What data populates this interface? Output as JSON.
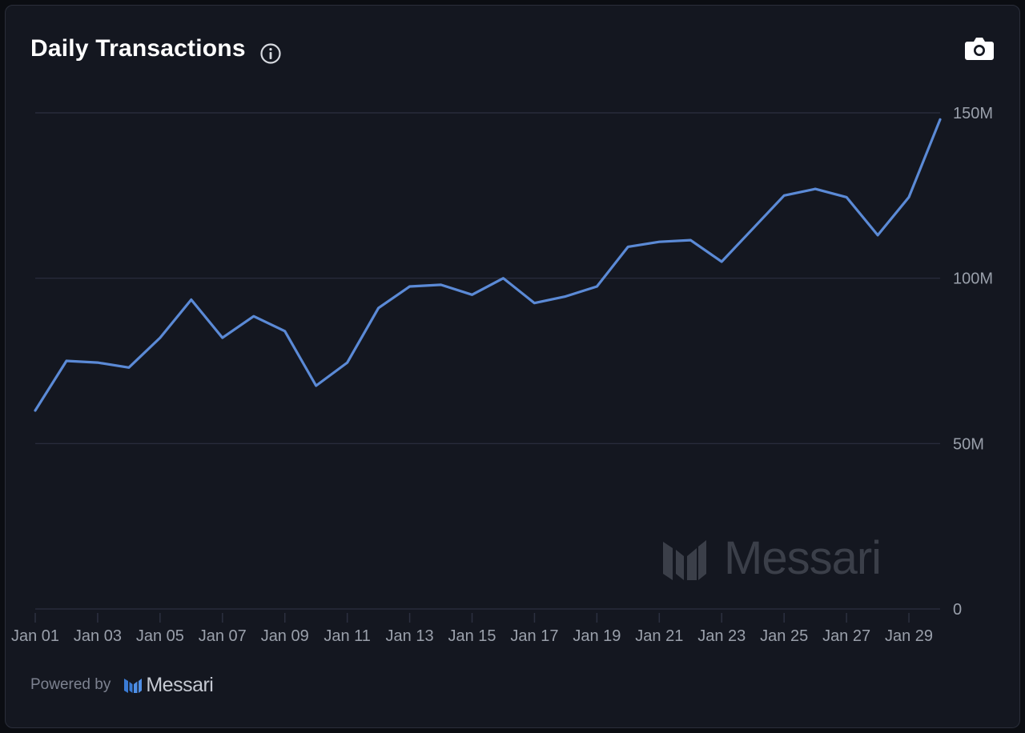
{
  "header": {
    "title": "Daily Transactions",
    "info_icon": "info-circle-icon",
    "camera_icon": "camera-icon"
  },
  "footer": {
    "powered_by": "Powered by",
    "brand": "Messari"
  },
  "watermark": {
    "text": "Messari"
  },
  "colors": {
    "background": "#141720",
    "line": "#5b8ad6",
    "grid": "#2c3040",
    "tick_text": "#9aa0ab"
  },
  "chart_data": {
    "type": "line",
    "title": "Daily Transactions",
    "xlabel": "",
    "ylabel": "",
    "ylim": [
      0,
      150000000
    ],
    "yticks": [
      {
        "value": 0,
        "label": "0"
      },
      {
        "value": 50000000,
        "label": "50M"
      },
      {
        "value": 100000000,
        "label": "100M"
      },
      {
        "value": 150000000,
        "label": "150M"
      }
    ],
    "xtick_labels": [
      "Jan 01",
      "Jan 03",
      "Jan 05",
      "Jan 07",
      "Jan 09",
      "Jan 11",
      "Jan 13",
      "Jan 15",
      "Jan 17",
      "Jan 19",
      "Jan 21",
      "Jan 23",
      "Jan 25",
      "Jan 27",
      "Jan 29"
    ],
    "grid": true,
    "y_axis_side": "right",
    "series": [
      {
        "x": [
          "Jan 01",
          "Jan 02",
          "Jan 03",
          "Jan 04",
          "Jan 05",
          "Jan 06",
          "Jan 07",
          "Jan 08",
          "Jan 09",
          "Jan 10",
          "Jan 11",
          "Jan 12",
          "Jan 13",
          "Jan 14",
          "Jan 15",
          "Jan 16",
          "Jan 17",
          "Jan 18",
          "Jan 19",
          "Jan 20",
          "Jan 21",
          "Jan 22",
          "Jan 23",
          "Jan 24",
          "Jan 25",
          "Jan 26",
          "Jan 27",
          "Jan 28",
          "Jan 29",
          "Jan 30"
        ],
        "values": [
          60000000,
          75000000,
          74500000,
          73000000,
          82000000,
          93500000,
          82000000,
          88500000,
          84000000,
          67500000,
          74500000,
          91000000,
          97500000,
          98000000,
          95000000,
          100000000,
          92500000,
          94500000,
          97500000,
          109500000,
          111000000,
          111500000,
          105000000,
          115000000,
          125000000,
          127000000,
          124500000,
          113000000,
          124500000,
          148000000
        ]
      }
    ]
  }
}
